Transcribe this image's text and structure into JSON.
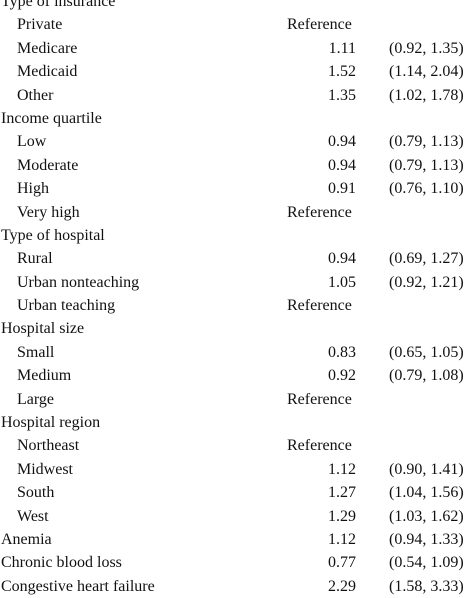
{
  "rows": [
    {
      "type": "section",
      "label": "Type of insurance"
    },
    {
      "type": "item",
      "label": "Private",
      "value": "Reference",
      "ci": ""
    },
    {
      "type": "item",
      "label": "Medicare",
      "value": "1.11",
      "ci": "(0.92, 1.35)"
    },
    {
      "type": "item",
      "label": "Medicaid",
      "value": "1.52",
      "ci": "(1.14, 2.04)"
    },
    {
      "type": "item",
      "label": "Other",
      "value": "1.35",
      "ci": "(1.02, 1.78)"
    },
    {
      "type": "section",
      "label": "Income quartile"
    },
    {
      "type": "item",
      "label": "Low",
      "value": "0.94",
      "ci": "(0.79, 1.13)"
    },
    {
      "type": "item",
      "label": "Moderate",
      "value": "0.94",
      "ci": "(0.79, 1.13)"
    },
    {
      "type": "item",
      "label": "High",
      "value": "0.91",
      "ci": "(0.76, 1.10)"
    },
    {
      "type": "item",
      "label": "Very high",
      "value": "Reference",
      "ci": ""
    },
    {
      "type": "section",
      "label": "Type of hospital"
    },
    {
      "type": "item",
      "label": "Rural",
      "value": "0.94",
      "ci": "(0.69, 1.27)"
    },
    {
      "type": "item",
      "label": "Urban nonteaching",
      "value": "1.05",
      "ci": "(0.92, 1.21)"
    },
    {
      "type": "item",
      "label": "Urban teaching",
      "value": "Reference",
      "ci": ""
    },
    {
      "type": "section",
      "label": "Hospital size"
    },
    {
      "type": "item",
      "label": "Small",
      "value": "0.83",
      "ci": "(0.65, 1.05)"
    },
    {
      "type": "item",
      "label": "Medium",
      "value": "0.92",
      "ci": "(0.79, 1.08)"
    },
    {
      "type": "item",
      "label": "Large",
      "value": "Reference",
      "ci": ""
    },
    {
      "type": "section",
      "label": "Hospital region"
    },
    {
      "type": "item",
      "label": "Northeast",
      "value": "Reference",
      "ci": ""
    },
    {
      "type": "item",
      "label": "Midwest",
      "value": "1.12",
      "ci": "(0.90, 1.41)"
    },
    {
      "type": "item",
      "label": "South",
      "value": "1.27",
      "ci": "(1.04, 1.56)"
    },
    {
      "type": "item",
      "label": "West",
      "value": "1.29",
      "ci": "(1.03, 1.62)"
    },
    {
      "type": "top",
      "label": "Anemia",
      "value": "1.12",
      "ci": "(0.94, 1.33)"
    },
    {
      "type": "top",
      "label": "Chronic blood loss",
      "value": "0.77",
      "ci": "(0.54, 1.09)"
    },
    {
      "type": "top",
      "label": "Congestive heart failure",
      "value": "2.29",
      "ci": "(1.58, 3.33)"
    }
  ]
}
